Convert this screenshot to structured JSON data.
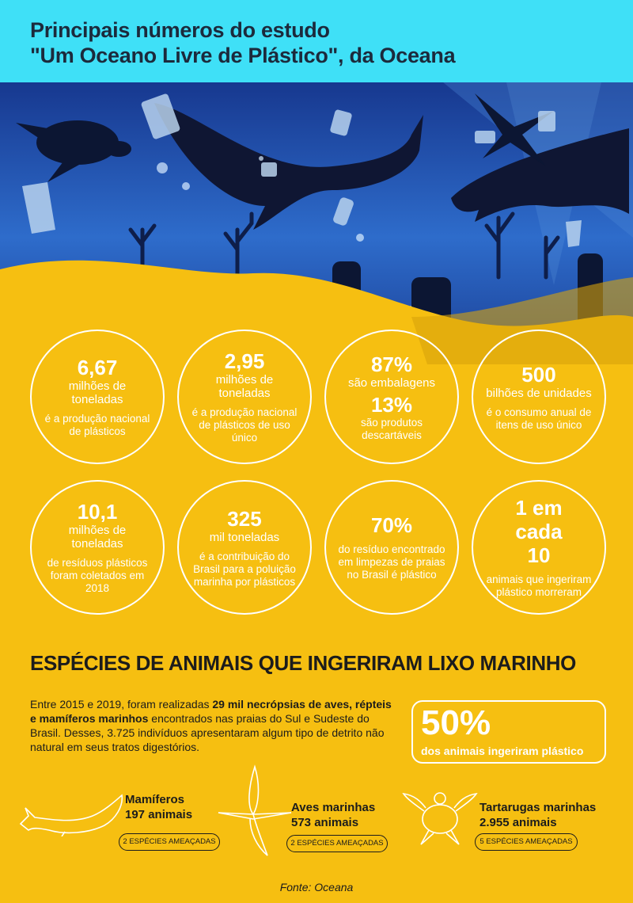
{
  "header": {
    "title_line1": "Principais números do estudo",
    "title_line2": "\"Um Oceano Livre de Plástico\", da Oceana"
  },
  "stats": [
    {
      "big": "6,67",
      "unit": "milhões de toneladas",
      "desc": "é a produção nacional de plásticos"
    },
    {
      "big": "2,95",
      "unit": "milhões de toneladas",
      "desc": "é a produção nacional de plásticos de uso único"
    },
    {
      "big": "87%",
      "unit": "são embalagens",
      "big2": "13%",
      "desc": "são produtos descartáveis"
    },
    {
      "big": "500",
      "unit": "bilhões de unidades",
      "desc": "é o consumo anual de itens de uso único"
    },
    {
      "big": "10,1",
      "unit": "milhões de toneladas",
      "desc": "de resíduos plásticos foram coletados em 2018"
    },
    {
      "big": "325",
      "unit": "mil toneladas",
      "desc": "é a contribuição do Brasil para a poluição marinha por plásticos"
    },
    {
      "big": "70%",
      "desc": "do resíduo encontrado em limpezas de praias no Brasil é plástico"
    },
    {
      "big": "1 em cada 10",
      "desc": "animais que ingeriram plástico morreram"
    }
  ],
  "species": {
    "title": "ESPÉCIES DE ANIMAIS QUE INGERIRAM LIXO MARINHO",
    "intro_a": "Entre 2015 e 2019, foram realizadas ",
    "intro_bold": "29 mil necrópsias de aves, répteis e mamíferos marinhos",
    "intro_b": " encontrados nas praias do Sul e Sudeste do Brasil. Desses, 3.725 indivíduos apresentaram algum tipo de detrito não natural em seus tratos digestórios.",
    "pct": "50%",
    "pct_desc": "dos animais ingeriram plástico",
    "groups": [
      {
        "name": "Mamíferos",
        "count": "197 animais",
        "badge": "2 ESPÉCIES AMEAÇADAS"
      },
      {
        "name": "Aves marinhas",
        "count": "573 animais",
        "badge": "2 ESPÉCIES AMEAÇADAS"
      },
      {
        "name": "Tartarugas marinhas",
        "count": "2.955 animais",
        "badge": "5 ESPÉCIES AMEAÇADAS"
      }
    ]
  },
  "source": "Fonte: Oceana",
  "colors": {
    "yellow": "#f6bf11",
    "cyan": "#3fe0f7",
    "deep_blue": "#1a3a8c",
    "ocean_blue": "#2f66c2"
  }
}
